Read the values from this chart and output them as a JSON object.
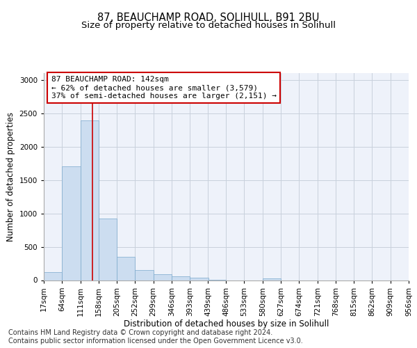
{
  "title_line1": "87, BEAUCHAMP ROAD, SOLIHULL, B91 2BU",
  "title_line2": "Size of property relative to detached houses in Solihull",
  "xlabel": "Distribution of detached houses by size in Solihull",
  "ylabel": "Number of detached properties",
  "bar_color": "#ccddf0",
  "bar_edge_color": "#7aa8cc",
  "grid_color": "#c8d0dc",
  "background_color": "#eef2fa",
  "annotation_text": "87 BEAUCHAMP ROAD: 142sqm\n← 62% of detached houses are smaller (3,579)\n37% of semi-detached houses are larger (2,151) →",
  "annotation_box_color": "#ffffff",
  "annotation_edge_color": "#cc0000",
  "property_line_color": "#cc0000",
  "bin_edges": [
    17,
    64,
    111,
    158,
    205,
    252,
    299,
    346,
    393,
    439,
    486,
    533,
    580,
    627,
    674,
    721,
    768,
    815,
    862,
    909,
    956
  ],
  "bar_heights": [
    120,
    1700,
    2390,
    920,
    350,
    155,
    90,
    55,
    35,
    5,
    0,
    0,
    30,
    0,
    0,
    0,
    0,
    0,
    0,
    0
  ],
  "ylim": [
    0,
    3100
  ],
  "yticks": [
    0,
    500,
    1000,
    1500,
    2000,
    2500,
    3000
  ],
  "footer_text": "Contains HM Land Registry data © Crown copyright and database right 2024.\nContains public sector information licensed under the Open Government Licence v3.0.",
  "title_fontsize": 10.5,
  "subtitle_fontsize": 9.5,
  "ylabel_fontsize": 8.5,
  "xlabel_fontsize": 8.5,
  "tick_fontsize": 7.5,
  "annot_fontsize": 8,
  "footer_fontsize": 7
}
